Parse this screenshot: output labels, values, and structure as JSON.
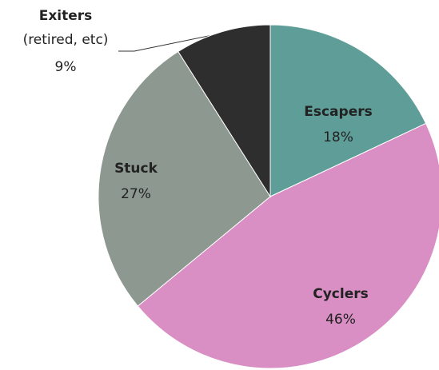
{
  "chart_data": {
    "type": "pie",
    "categories": [
      "Escapers",
      "Cyclers",
      "Stuck",
      "Exiters"
    ],
    "category_notes": [
      null,
      null,
      null,
      "(retired, etc)"
    ],
    "values": [
      18,
      46,
      27,
      9
    ],
    "value_labels": [
      "18%",
      "46%",
      "27%",
      "9%"
    ],
    "colors": [
      "#5f9e98",
      "#d98fc4",
      "#8c9890",
      "#2e2e2e"
    ]
  }
}
